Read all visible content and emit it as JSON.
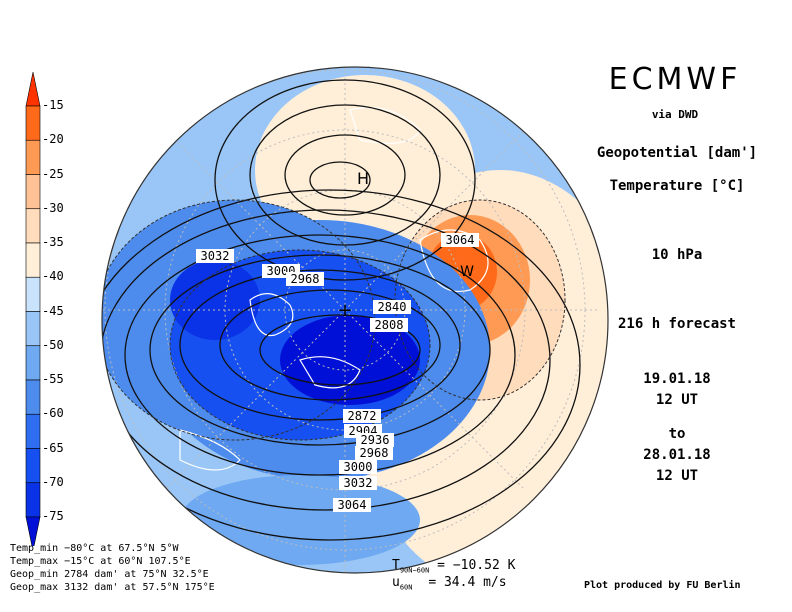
{
  "header": {
    "brand": "ECMWF",
    "via": "via DWD"
  },
  "fields": {
    "field1": "Geopotential [dam']",
    "field2": "Temperature [°C]"
  },
  "level": "10 hPa",
  "forecast": "216 h forecast",
  "valid": {
    "from_date": "19.01.18",
    "from_time": "12 UT",
    "to": "to",
    "to_date": "28.01.18",
    "to_time": "12 UT"
  },
  "colorbar": {
    "labels": [
      "-15",
      "-20",
      "-25",
      "-30",
      "-35",
      "-40",
      "-45",
      "-50",
      "-55",
      "-60",
      "-65",
      "-70",
      "-75"
    ],
    "colors": [
      "#ff3300",
      "#ff6a1a",
      "#ff9a55",
      "#ffc296",
      "#ffdcbc",
      "#ffefd9",
      "#c8e3fb",
      "#99c6f7",
      "#6ea9f1",
      "#4d8cec",
      "#2f6ef0",
      "#1650f0",
      "#0a32e6",
      "#0010d6"
    ]
  },
  "map": {
    "contour_labels": [
      "3032",
      "3000",
      "2968",
      "3064",
      "2840",
      "2808",
      "2872",
      "2904",
      "2936",
      "2968",
      "3000",
      "3032",
      "3064"
    ],
    "high": "H",
    "warm": "W",
    "colors": {
      "land": "#ffffff",
      "grid": "#bcbcbc",
      "contour": "#111111"
    }
  },
  "stats": {
    "temp_min": "Temp_min −80°C at 67.5°N 5°W",
    "temp_max": "Temp_max −15°C at 60°N 107.5°E",
    "geop_min": "Geop_min 2784 dam' at 75°N 32.5°E",
    "geop_max": "Geop_max 3132 dam' at 57.5°N 175°E"
  },
  "indices": {
    "t_symbol": "T",
    "t_sub": "90N−60N",
    "t_value": "= −10.52 K",
    "u_symbol": "u",
    "u_sub": "60N",
    "u_value": "= 34.4 m/s"
  },
  "credit": "Plot produced by FU Berlin"
}
